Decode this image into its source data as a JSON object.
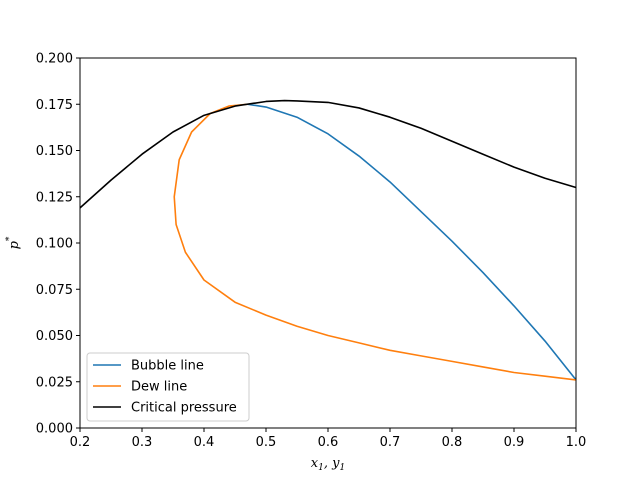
{
  "chart_data": {
    "type": "line",
    "xlabel": "x_1, y_1",
    "ylabel": "p^*",
    "xlim": [
      0.2,
      1.0
    ],
    "ylim": [
      0.0,
      0.2
    ],
    "xticks": [
      "0.2",
      "0.3",
      "0.4",
      "0.5",
      "0.6",
      "0.7",
      "0.8",
      "0.9",
      "1.0"
    ],
    "yticks": [
      "0.000",
      "0.025",
      "0.050",
      "0.075",
      "0.100",
      "0.125",
      "0.150",
      "0.175",
      "0.200"
    ],
    "legend_position": "lower-left",
    "grid": false,
    "series": [
      {
        "name": "Bubble line",
        "color": "#1f77b4",
        "points": [
          [
            0.47,
            0.175
          ],
          [
            0.5,
            0.1735
          ],
          [
            0.55,
            0.168
          ],
          [
            0.6,
            0.159
          ],
          [
            0.65,
            0.147
          ],
          [
            0.7,
            0.133
          ],
          [
            0.75,
            0.117
          ],
          [
            0.8,
            0.101
          ],
          [
            0.85,
            0.084
          ],
          [
            0.9,
            0.066
          ],
          [
            0.95,
            0.047
          ],
          [
            1.0,
            0.026
          ]
        ]
      },
      {
        "name": "Dew line",
        "color": "#ff7f0e",
        "points": [
          [
            0.47,
            0.175
          ],
          [
            0.44,
            0.174
          ],
          [
            0.41,
            0.17
          ],
          [
            0.38,
            0.16
          ],
          [
            0.36,
            0.145
          ],
          [
            0.352,
            0.125
          ],
          [
            0.355,
            0.11
          ],
          [
            0.37,
            0.095
          ],
          [
            0.4,
            0.08
          ],
          [
            0.45,
            0.068
          ],
          [
            0.5,
            0.061
          ],
          [
            0.55,
            0.055
          ],
          [
            0.6,
            0.05
          ],
          [
            0.65,
            0.046
          ],
          [
            0.7,
            0.042
          ],
          [
            0.75,
            0.039
          ],
          [
            0.8,
            0.036
          ],
          [
            0.85,
            0.033
          ],
          [
            0.9,
            0.03
          ],
          [
            0.95,
            0.028
          ],
          [
            1.0,
            0.026
          ]
        ]
      },
      {
        "name": "Critical pressure",
        "color": "#000000",
        "points": [
          [
            0.2,
            0.119
          ],
          [
            0.25,
            0.134
          ],
          [
            0.3,
            0.148
          ],
          [
            0.35,
            0.16
          ],
          [
            0.4,
            0.169
          ],
          [
            0.45,
            0.174
          ],
          [
            0.5,
            0.1765
          ],
          [
            0.53,
            0.177
          ],
          [
            0.55,
            0.1768
          ],
          [
            0.6,
            0.176
          ],
          [
            0.65,
            0.173
          ],
          [
            0.7,
            0.168
          ],
          [
            0.75,
            0.162
          ],
          [
            0.8,
            0.155
          ],
          [
            0.85,
            0.148
          ],
          [
            0.9,
            0.141
          ],
          [
            0.95,
            0.135
          ],
          [
            1.0,
            0.13
          ]
        ]
      }
    ]
  }
}
